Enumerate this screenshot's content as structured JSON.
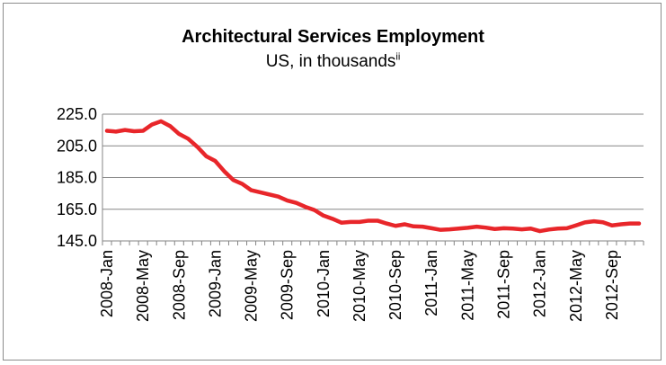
{
  "chart_data": {
    "type": "line",
    "title": "Architectural Services Employment",
    "subtitle": "US, in thousands",
    "subtitle_superscript": "ii",
    "xlabel": "",
    "ylabel": "",
    "ylim": [
      145.0,
      225.0
    ],
    "yticks": [
      "225.0",
      "205.0",
      "185.0",
      "165.0",
      "145.0"
    ],
    "grid": "horizontal",
    "line_color": "#e8262a",
    "x_tick_labels": [
      "2008-Jan",
      "2008-May",
      "2008-Sep",
      "2009-Jan",
      "2009-May",
      "2009-Sep",
      "2010-Jan",
      "2010-May",
      "2010-Sep",
      "2011-Jan",
      "2011-May",
      "2011-Sep",
      "2012-Jan",
      "2012-May",
      "2012-Sep"
    ],
    "x": [
      "2008-Jan",
      "2008-Feb",
      "2008-Mar",
      "2008-Apr",
      "2008-May",
      "2008-Jun",
      "2008-Jul",
      "2008-Aug",
      "2008-Sep",
      "2008-Oct",
      "2008-Nov",
      "2008-Dec",
      "2009-Jan",
      "2009-Feb",
      "2009-Mar",
      "2009-Apr",
      "2009-May",
      "2009-Jun",
      "2009-Jul",
      "2009-Aug",
      "2009-Sep",
      "2009-Oct",
      "2009-Nov",
      "2009-Dec",
      "2010-Jan",
      "2010-Feb",
      "2010-Mar",
      "2010-Apr",
      "2010-May",
      "2010-Jun",
      "2010-Jul",
      "2010-Aug",
      "2010-Sep",
      "2010-Oct",
      "2010-Nov",
      "2010-Dec",
      "2011-Jan",
      "2011-Feb",
      "2011-Mar",
      "2011-Apr",
      "2011-May",
      "2011-Jun",
      "2011-Jul",
      "2011-Aug",
      "2011-Sep",
      "2011-Oct",
      "2011-Nov",
      "2011-Dec",
      "2012-Jan",
      "2012-Feb",
      "2012-Mar",
      "2012-Apr",
      "2012-May",
      "2012-Jun",
      "2012-Jul",
      "2012-Aug",
      "2012-Sep",
      "2012-Oct",
      "2012-Nov",
      "2012-Dec"
    ],
    "values": [
      214.5,
      214.0,
      215.0,
      214.2,
      214.5,
      218.5,
      220.5,
      217.5,
      212.5,
      209.5,
      204.5,
      198.5,
      195.5,
      189.0,
      183.5,
      181.0,
      177.0,
      175.7,
      174.3,
      173.0,
      170.5,
      169.0,
      166.5,
      164.5,
      161.0,
      159.0,
      156.5,
      157.0,
      157.0,
      157.8,
      157.8,
      156.0,
      154.5,
      155.5,
      154.2,
      154.0,
      153.0,
      152.0,
      152.3,
      152.8,
      153.3,
      154.0,
      153.4,
      152.5,
      153.0,
      152.8,
      152.3,
      152.8,
      151.2,
      152.2,
      152.8,
      153.0,
      154.8,
      156.7,
      157.4,
      156.8,
      154.8,
      155.5,
      156.0,
      156.0
    ]
  }
}
